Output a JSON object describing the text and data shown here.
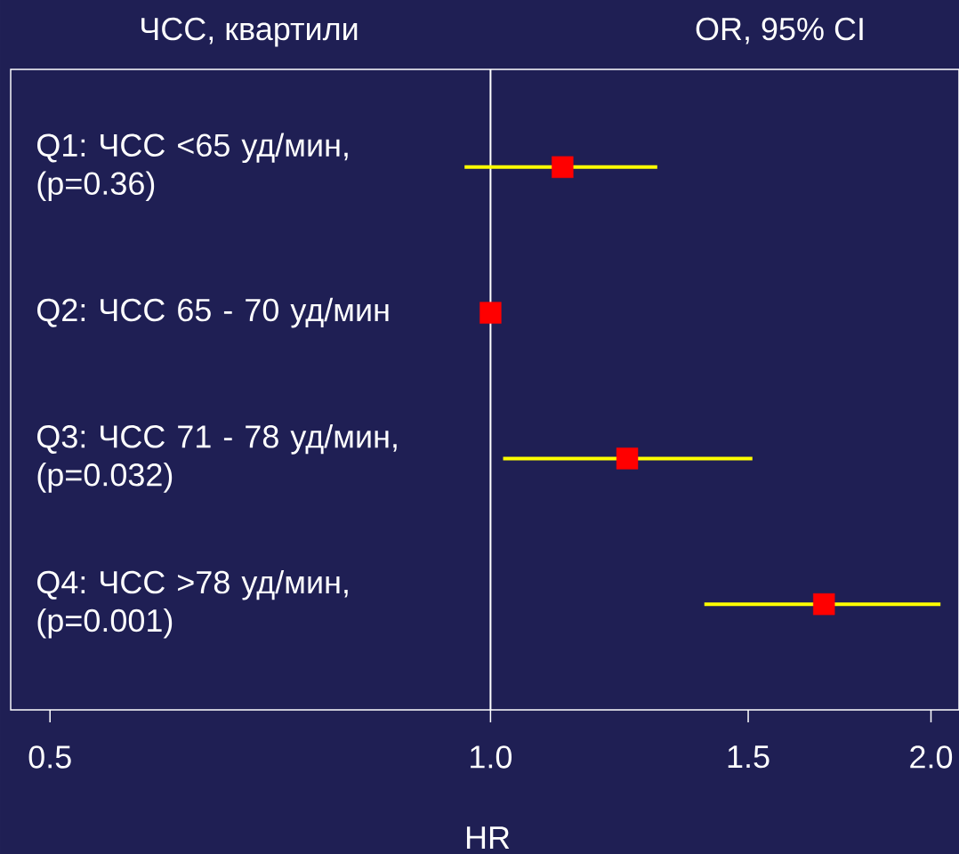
{
  "chart_data": {
    "type": "scatter",
    "orientation": "horizontal",
    "title": "ЧСС, квартили",
    "annotations": [
      "OR, 95% CI"
    ],
    "xlabel": "HR",
    "categories": [
      "Q1: ЧСС <65 уд/мин, (p=0.36)",
      "Q2: ЧСС 65 - 70 уд/мин",
      "Q3: ЧСС 71 - 78 уд/мин, (p=0.032)",
      "Q4: ЧСС >78 уд/мин, (p=0.001)"
    ],
    "values": [
      1.12,
      1.0,
      1.24,
      1.69
    ],
    "errors": [
      [
        0.96,
        1.3
      ],
      null,
      [
        1.02,
        1.51
      ],
      [
        1.4,
        2.03
      ]
    ],
    "color": "#ff0000",
    "marker": "square",
    "log": "x",
    "xlim": [
      0.47,
      2.09
    ],
    "xticks": [
      {
        "value": 0.5,
        "label": "0.5"
      },
      {
        "value": 1.0,
        "label": "1.0"
      },
      {
        "value": 1.5,
        "label": "1.5"
      },
      {
        "value": 2.0,
        "label": "2.0"
      }
    ],
    "ref_lines": [
      {
        "axis": "x",
        "value": 1.0,
        "color": "#ffffff"
      }
    ]
  }
}
